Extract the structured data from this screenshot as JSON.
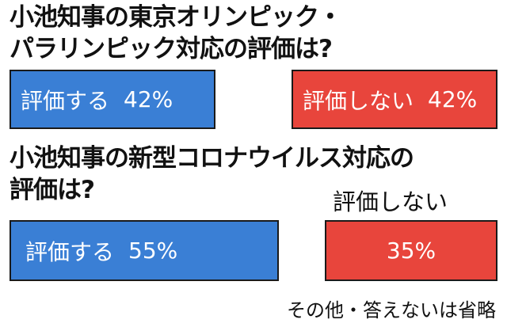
{
  "chart_data": [
    {
      "type": "bar",
      "title_lines": [
        "小池知事の東京オリンピック・",
        "パラリンピック対応の評価は?"
      ],
      "categories": [
        "評価する",
        "評価しない"
      ],
      "values": [
        42,
        42
      ],
      "value_labels": [
        "42%",
        "42%"
      ],
      "colors": [
        "#3a7fd5",
        "#e8453c"
      ]
    },
    {
      "type": "bar",
      "title_lines": [
        "小池知事の新型コロナウイルス対応の",
        "評価は?"
      ],
      "categories": [
        "評価する",
        "評価しない"
      ],
      "values": [
        55,
        35
      ],
      "value_labels": [
        "55%",
        "35%"
      ],
      "colors": [
        "#3a7fd5",
        "#e8453c"
      ]
    }
  ],
  "note": "その他・答えないは省略"
}
